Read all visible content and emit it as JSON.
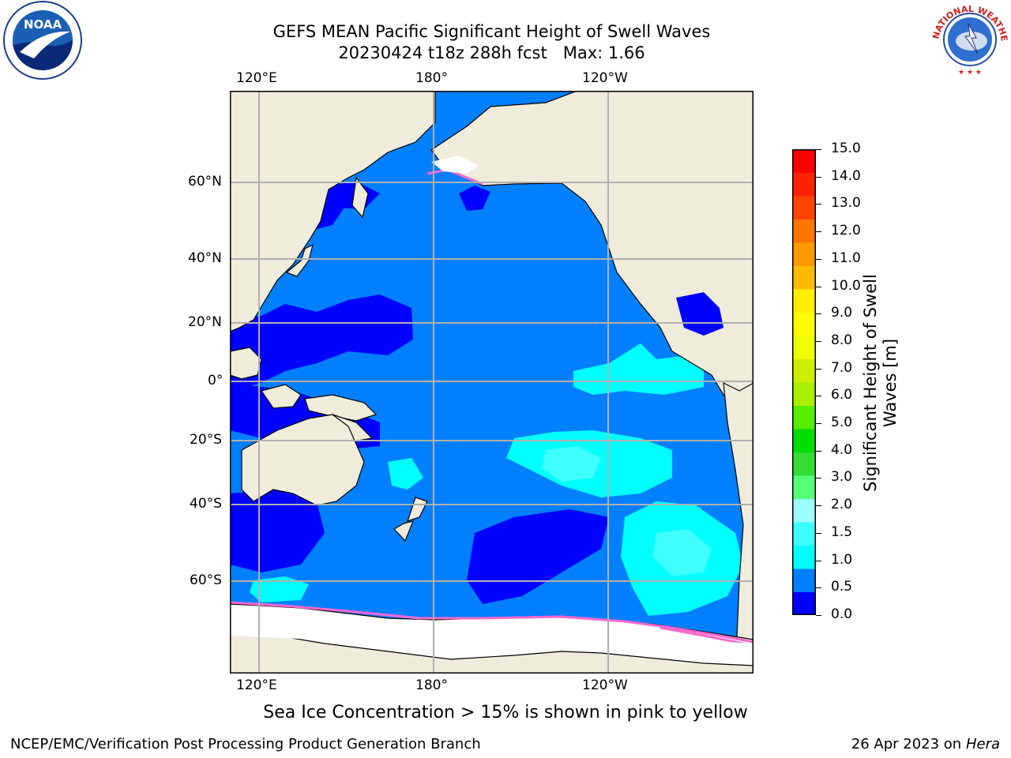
{
  "title": "GEFS MEAN Pacific Significant Height of Swell Waves",
  "subtitle": "20230424 t18z 288h fcst   Max: 1.66",
  "map": {
    "lon_labels_top": [
      "120°E",
      "180°",
      "120°W"
    ],
    "lon_labels_bottom": [
      "120°E",
      "180°",
      "120°W"
    ],
    "lat_labels": [
      "60°N",
      "40°N",
      "20°N",
      "0°",
      "20°S",
      "40°S",
      "60°S"
    ],
    "colors": {
      "land": "#efecdc",
      "ice": "#ffffff",
      "band_0_05": "#0000ff",
      "band_05_10": "#0080ff",
      "band_10_15": "#00ffff",
      "band_15_20": "#3fffff",
      "ice_edge": "#ff66cc",
      "grid": "#b0b0b0"
    }
  },
  "colorbar": {
    "title": "Significant Height of Swell Waves [m]",
    "labels": [
      "15.0",
      "14.0",
      "13.0",
      "12.0",
      "11.0",
      "10.0",
      "9.0",
      "8.0",
      "7.0",
      "6.0",
      "5.0",
      "4.0",
      "3.0",
      "2.0",
      "1.5",
      "1.0",
      "0.5",
      "0.0"
    ],
    "colors": [
      "#0000ff",
      "#0080ff",
      "#00ffff",
      "#40ffff",
      "#99ffff",
      "#55ff77",
      "#33dd33",
      "#00dd00",
      "#55ee00",
      "#aaee00",
      "#ccee00",
      "#eeff00",
      "#ffff00",
      "#ffee00",
      "#ffbb00",
      "#ff9900",
      "#ff7700",
      "#ff4400",
      "#ff2200",
      "#ff0000"
    ]
  },
  "note": "Sea Ice Concentration > 15% is shown in pink to yellow",
  "footer": {
    "left": "NCEP/EMC/Verification Post Processing Product Generation Branch",
    "right_date": "26 Apr 2023 on ",
    "right_host": "Hera"
  },
  "logos": {
    "noaa_text": "NOAA",
    "nws_text": "NATIONAL WEATHER SERVICE"
  }
}
